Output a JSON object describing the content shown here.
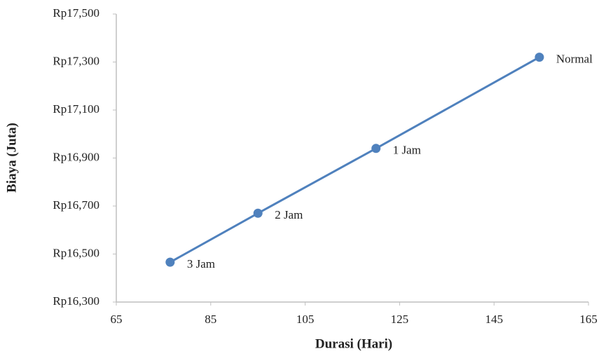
{
  "chart_data": {
    "type": "line",
    "x_label": "Durasi (Hari)",
    "y_label": "Biaya (Juta)",
    "x": [
      76.4,
      95,
      120,
      154.6
    ],
    "values": [
      16466,
      16670,
      16940,
      17320
    ],
    "point_labels": [
      "3 Jam",
      "2 Jam",
      "1 Jam",
      "Normal"
    ],
    "color": "#4f81bd",
    "xlim": [
      65,
      165
    ],
    "xticks": [
      65,
      85,
      105,
      125,
      145,
      165
    ],
    "ylim": [
      16300,
      17500
    ],
    "yticks": [
      {
        "value": 16300,
        "label": "Rp16,300"
      },
      {
        "value": 16500,
        "label": "Rp16,500"
      },
      {
        "value": 16700,
        "label": "Rp16,700"
      },
      {
        "value": 16900,
        "label": "Rp16,900"
      },
      {
        "value": 17100,
        "label": "Rp17,100"
      },
      {
        "value": 17300,
        "label": "Rp17,300"
      },
      {
        "value": 17500,
        "label": "Rp17,500"
      }
    ],
    "grid": false
  }
}
